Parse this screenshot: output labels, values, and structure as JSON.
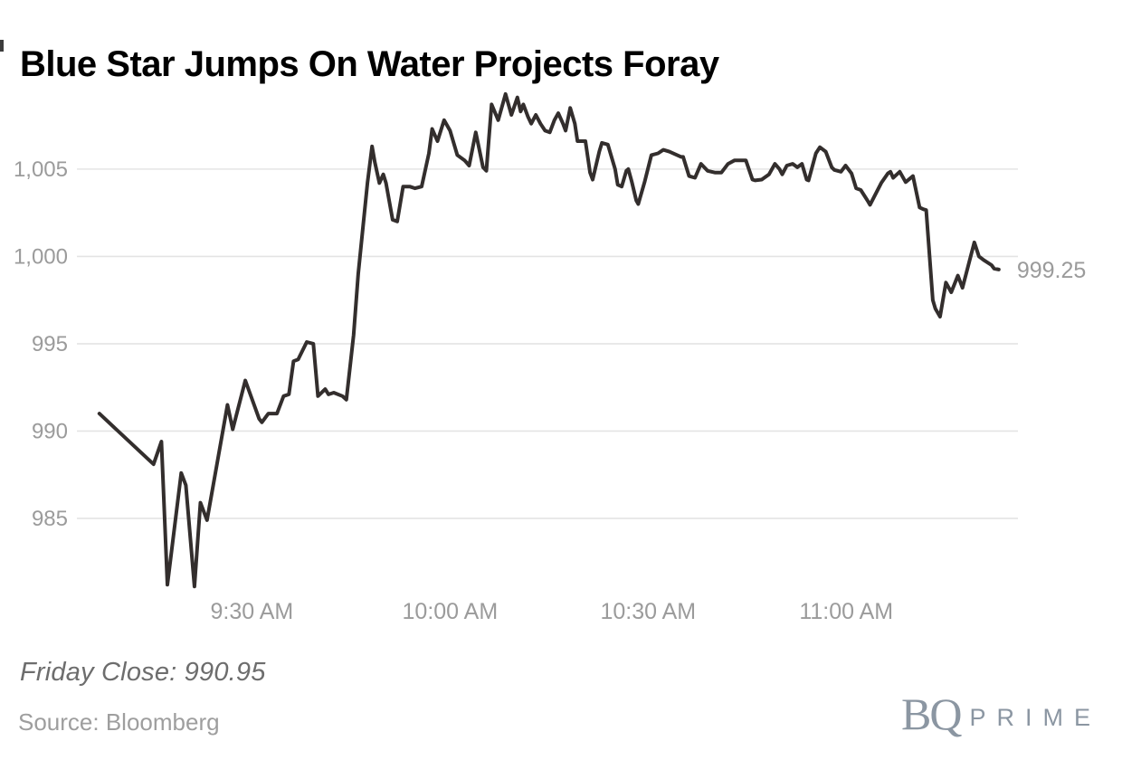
{
  "title": "Blue Star Jumps On Water Projects Foray",
  "footer": {
    "friday_close": "Friday Close: 990.95",
    "source": "Source: Bloomberg"
  },
  "logo": {
    "bq": "BQ",
    "prime": "PRIME",
    "color": "#8b96a2"
  },
  "colors": {
    "title": "#000000",
    "line": "#332e2d",
    "grid": "#e4e4e4",
    "tick_label": "#9b9b9b",
    "end_label": "#9b9b9b",
    "annotation": "#6d6d6d",
    "source": "#9e9e9e"
  },
  "chart_data": {
    "type": "line",
    "title": "Blue Star Jumps On Water Projects Foray",
    "xlabel": "",
    "ylabel": "",
    "x_unit": "minutes_after_9:00_AM",
    "grid": "horizontal-only",
    "legend": "none",
    "x_domain_minutes": [
      3.5,
      146
    ],
    "y_domain": [
      980.75,
      1009.5
    ],
    "x_ticks": [
      {
        "minutes": 30,
        "label": "9:30 AM"
      },
      {
        "minutes": 60,
        "label": "10:00 AM"
      },
      {
        "minutes": 90,
        "label": "10:30 AM"
      },
      {
        "minutes": 120,
        "label": "11:00 AM"
      }
    ],
    "y_ticks": [
      {
        "value": 1005,
        "label": "1,005"
      },
      {
        "value": 1000,
        "label": "1,000"
      },
      {
        "value": 995,
        "label": "995"
      },
      {
        "value": 990,
        "label": "990"
      },
      {
        "value": 985,
        "label": "985"
      }
    ],
    "end_label": "999.25",
    "annotation": "Friday Close: 990.95",
    "points": [
      [
        6.9,
        991.0
      ],
      [
        15.1,
        988.1
      ],
      [
        16.3,
        989.4
      ],
      [
        17.2,
        981.2
      ],
      [
        19.3,
        987.6
      ],
      [
        20.0,
        986.9
      ],
      [
        21.3,
        981.1
      ],
      [
        22.2,
        985.9
      ],
      [
        23.2,
        984.9
      ],
      [
        26.3,
        991.5
      ],
      [
        27.1,
        990.1
      ],
      [
        29.0,
        992.9
      ],
      [
        31.1,
        990.7
      ],
      [
        31.5,
        990.5
      ],
      [
        32.5,
        991.0
      ],
      [
        33.8,
        991.0
      ],
      [
        34.8,
        992.0
      ],
      [
        35.6,
        992.1
      ],
      [
        36.3,
        994.0
      ],
      [
        37.0,
        994.1
      ],
      [
        38.3,
        995.1
      ],
      [
        39.3,
        995.0
      ],
      [
        40.0,
        992.0
      ],
      [
        41.1,
        992.4
      ],
      [
        41.6,
        992.1
      ],
      [
        42.4,
        992.2
      ],
      [
        43.7,
        992.0
      ],
      [
        44.3,
        991.8
      ],
      [
        45.4,
        995.5
      ],
      [
        46.1,
        999.0
      ],
      [
        46.8,
        1001.6
      ],
      [
        47.5,
        1004.2
      ],
      [
        48.2,
        1006.3
      ],
      [
        48.6,
        1005.4
      ],
      [
        49.3,
        1004.2
      ],
      [
        49.9,
        1004.7
      ],
      [
        50.3,
        1004.2
      ],
      [
        51.3,
        1002.1
      ],
      [
        52.0,
        1002.0
      ],
      [
        52.9,
        1004.0
      ],
      [
        53.9,
        1004.0
      ],
      [
        54.7,
        1003.9
      ],
      [
        55.7,
        1004.0
      ],
      [
        56.8,
        1005.9
      ],
      [
        57.3,
        1007.3
      ],
      [
        58.1,
        1006.6
      ],
      [
        59.1,
        1007.8
      ],
      [
        60.0,
        1007.2
      ],
      [
        61.1,
        1005.8
      ],
      [
        62.2,
        1005.5
      ],
      [
        62.9,
        1005.2
      ],
      [
        63.9,
        1007.1
      ],
      [
        65.0,
        1005.1
      ],
      [
        65.5,
        1004.9
      ],
      [
        66.3,
        1008.7
      ],
      [
        67.3,
        1007.8
      ],
      [
        68.4,
        1009.3
      ],
      [
        69.3,
        1008.1
      ],
      [
        70.2,
        1009.1
      ],
      [
        70.7,
        1008.3
      ],
      [
        71.1,
        1008.7
      ],
      [
        71.8,
        1008.0
      ],
      [
        72.3,
        1007.6
      ],
      [
        73.0,
        1008.1
      ],
      [
        73.7,
        1007.6
      ],
      [
        74.4,
        1007.2
      ],
      [
        75.1,
        1007.1
      ],
      [
        75.8,
        1007.8
      ],
      [
        76.4,
        1008.2
      ],
      [
        77.1,
        1007.6
      ],
      [
        77.5,
        1007.2
      ],
      [
        78.2,
        1008.5
      ],
      [
        78.9,
        1007.6
      ],
      [
        79.3,
        1006.6
      ],
      [
        80.5,
        1006.6
      ],
      [
        81.2,
        1004.8
      ],
      [
        81.6,
        1004.4
      ],
      [
        82.6,
        1006.0
      ],
      [
        83.0,
        1006.5
      ],
      [
        83.9,
        1006.4
      ],
      [
        85.0,
        1005.0
      ],
      [
        85.4,
        1004.1
      ],
      [
        86.0,
        1004.0
      ],
      [
        86.7,
        1004.9
      ],
      [
        87.0,
        1005.0
      ],
      [
        87.5,
        1004.3
      ],
      [
        88.2,
        1003.2
      ],
      [
        88.5,
        1003.0
      ],
      [
        89.5,
        1004.3
      ],
      [
        90.5,
        1005.8
      ],
      [
        91.5,
        1005.9
      ],
      [
        92.3,
        1006.1
      ],
      [
        93.2,
        1006.0
      ],
      [
        95.0,
        1005.7
      ],
      [
        95.3,
        1005.7
      ],
      [
        96.2,
        1004.6
      ],
      [
        97.1,
        1004.5
      ],
      [
        98.0,
        1005.3
      ],
      [
        99.0,
        1004.9
      ],
      [
        100.1,
        1004.8
      ],
      [
        101.1,
        1004.8
      ],
      [
        102.1,
        1005.3
      ],
      [
        103.1,
        1005.5
      ],
      [
        104.8,
        1005.5
      ],
      [
        105.8,
        1004.4
      ],
      [
        106.2,
        1004.35
      ],
      [
        107.2,
        1004.4
      ],
      [
        108.3,
        1004.7
      ],
      [
        109.2,
        1005.3
      ],
      [
        109.9,
        1005.0
      ],
      [
        110.3,
        1004.7
      ],
      [
        111.0,
        1005.2
      ],
      [
        111.9,
        1005.3
      ],
      [
        112.6,
        1005.1
      ],
      [
        113.3,
        1005.3
      ],
      [
        114.0,
        1004.4
      ],
      [
        114.3,
        1004.35
      ],
      [
        115.4,
        1005.9
      ],
      [
        116.0,
        1006.25
      ],
      [
        116.9,
        1006.0
      ],
      [
        117.8,
        1005.1
      ],
      [
        118.2,
        1004.95
      ],
      [
        119.2,
        1004.85
      ],
      [
        119.9,
        1005.2
      ],
      [
        120.8,
        1004.75
      ],
      [
        121.5,
        1003.9
      ],
      [
        122.2,
        1003.8
      ],
      [
        123.3,
        1003.15
      ],
      [
        123.6,
        1002.95
      ],
      [
        125.3,
        1004.2
      ],
      [
        126.3,
        1004.75
      ],
      [
        126.7,
        1004.85
      ],
      [
        127.1,
        1004.5
      ],
      [
        128.1,
        1004.85
      ],
      [
        129.0,
        1004.25
      ],
      [
        130.1,
        1004.6
      ],
      [
        131.1,
        1002.8
      ],
      [
        131.7,
        1002.7
      ],
      [
        132.1,
        1002.65
      ],
      [
        133.1,
        997.5
      ],
      [
        133.5,
        997.0
      ],
      [
        134.2,
        996.55
      ],
      [
        135.1,
        998.5
      ],
      [
        135.9,
        997.95
      ],
      [
        136.9,
        998.9
      ],
      [
        137.6,
        998.2
      ],
      [
        139.4,
        1000.8
      ],
      [
        140.1,
        1000.0
      ],
      [
        140.8,
        999.8
      ],
      [
        142.0,
        999.5
      ],
      [
        142.4,
        999.3
      ],
      [
        143.1,
        999.25
      ]
    ]
  }
}
